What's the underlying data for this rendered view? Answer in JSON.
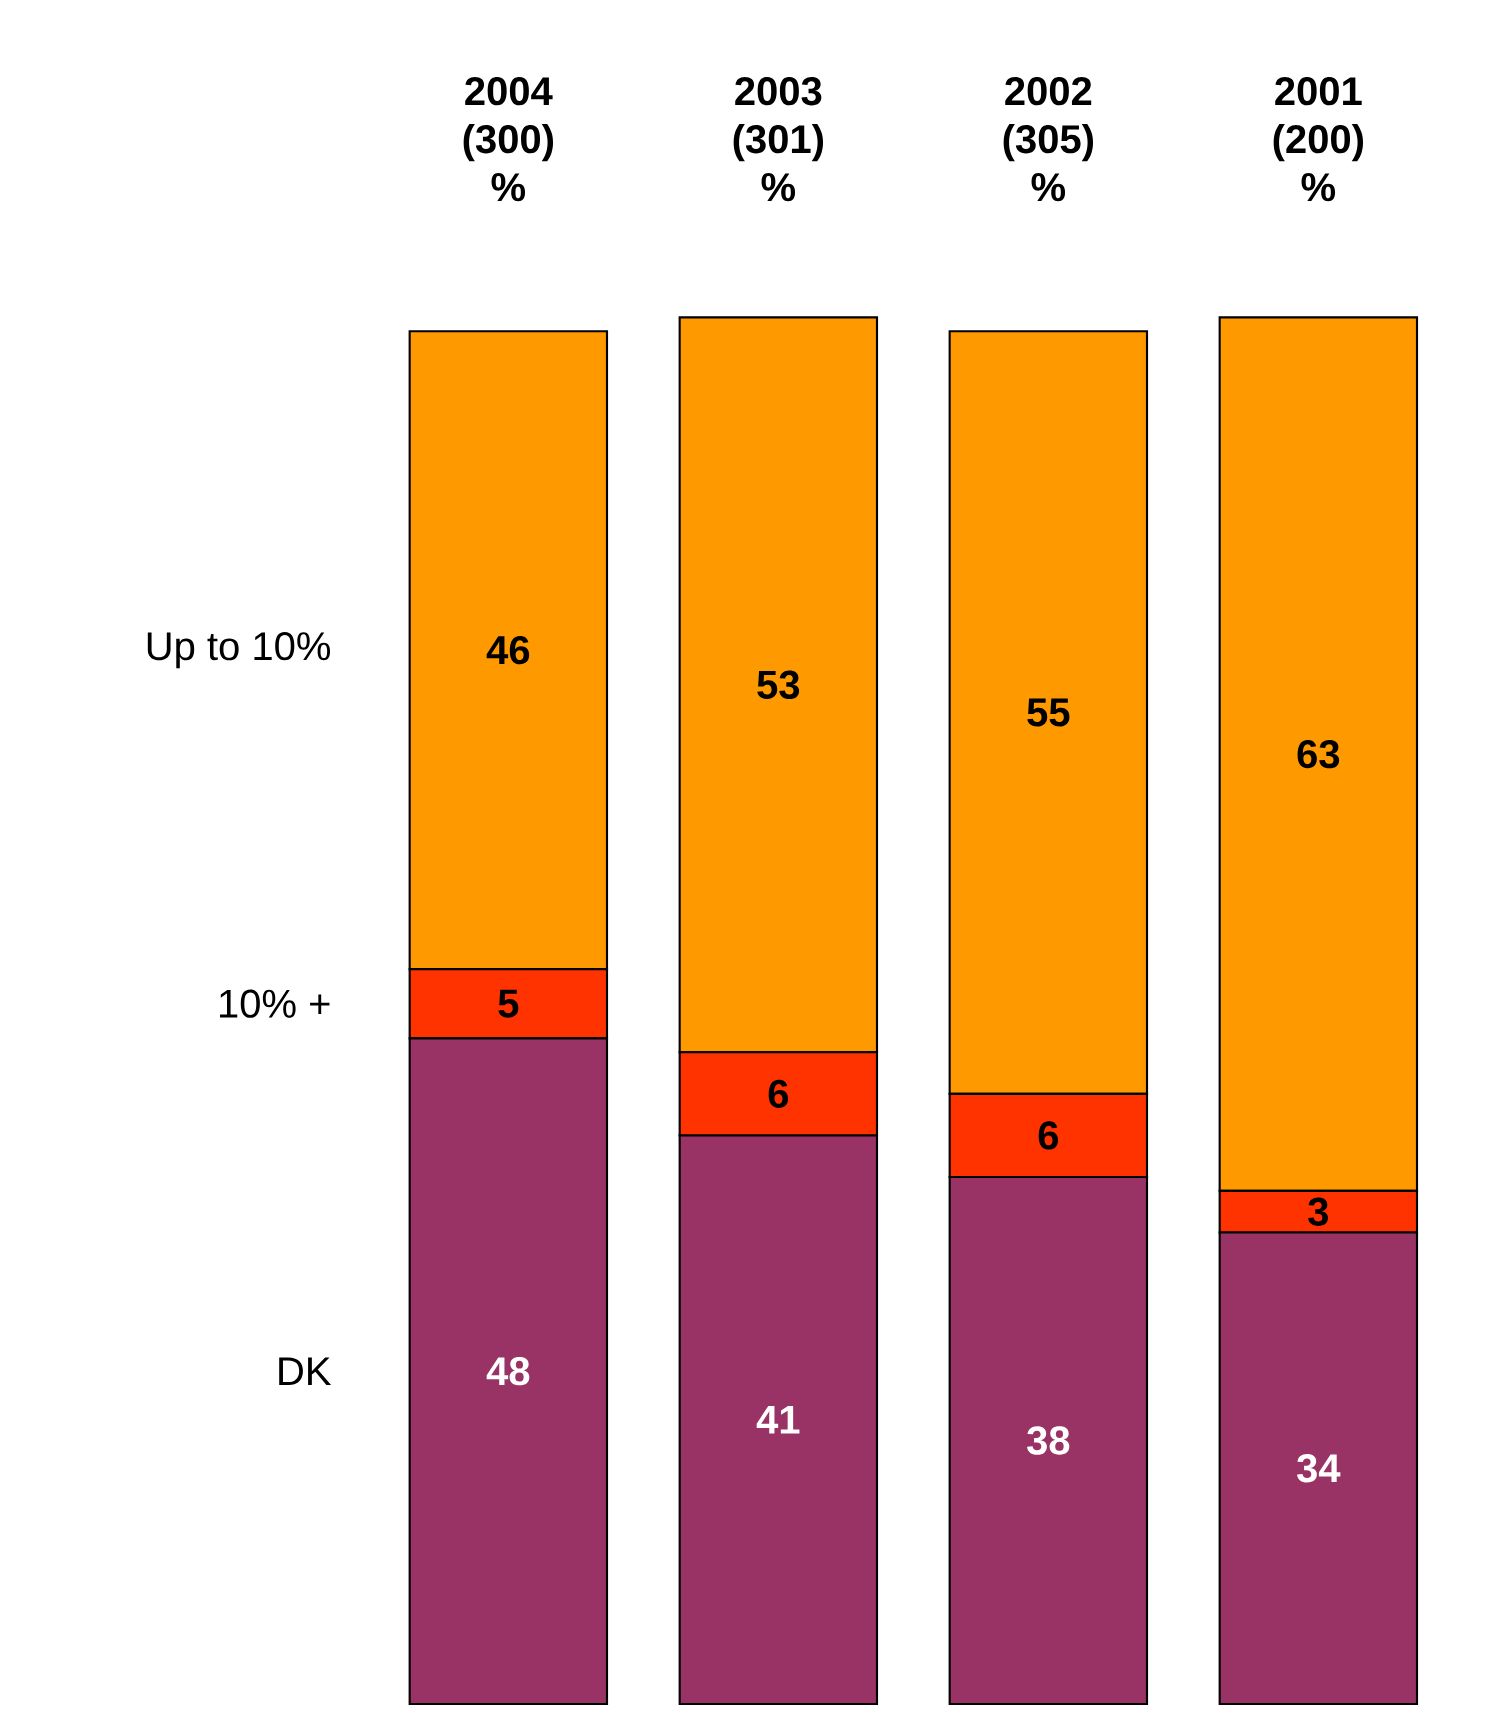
{
  "chart_data": {
    "type": "bar",
    "stacked": true,
    "data_labels": true,
    "categories": [
      "2004 (300) %",
      "2003 (301) %",
      "2002 (305) %",
      "2001 (200) %"
    ],
    "series": [
      {
        "name": "DK",
        "color": "#993366",
        "values": [
          48,
          41,
          38,
          34
        ]
      },
      {
        "name": "10% +",
        "color": "#ff3300",
        "values": [
          5,
          6,
          6,
          3
        ]
      },
      {
        "name": "Up to 10%",
        "color": "#ff9900",
        "values": [
          46,
          53,
          55,
          63
        ]
      }
    ]
  }
}
